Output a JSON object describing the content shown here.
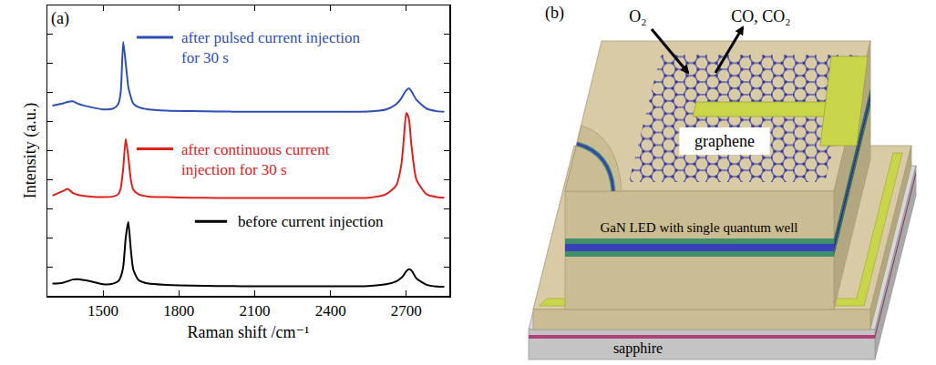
{
  "chart_data": {
    "type": "line",
    "panel_label": "(a)",
    "x_label": "Raman shift /cm⁻¹",
    "y_label": "Intensity (a.u.)",
    "x": [
      1300,
      1340,
      1360,
      1380,
      1400,
      1450,
      1500,
      1540,
      1560,
      1570,
      1580,
      1590,
      1600,
      1610,
      1620,
      1640,
      1680,
      1750,
      1850,
      1950,
      2050,
      2150,
      2250,
      2350,
      2450,
      2550,
      2620,
      2660,
      2680,
      2690,
      2700,
      2710,
      2720,
      2740,
      2780,
      2820,
      2850
    ],
    "series": [
      {
        "name": "after pulsed current injection for 30 s",
        "color": "#2e4fb5",
        "values": [
          6.55,
          6.62,
          6.68,
          6.7,
          6.62,
          6.5,
          6.42,
          6.45,
          6.6,
          7.0,
          8.75,
          8.0,
          7.2,
          6.85,
          6.62,
          6.5,
          6.42,
          6.38,
          6.36,
          6.35,
          6.34,
          6.34,
          6.34,
          6.34,
          6.34,
          6.35,
          6.42,
          6.6,
          6.8,
          6.95,
          7.08,
          7.15,
          7.05,
          6.75,
          6.45,
          6.36,
          6.34
        ]
      },
      {
        "name": "after continuous current injection for 30 s",
        "color": "#e0201b",
        "values": [
          3.45,
          3.6,
          3.68,
          3.55,
          3.48,
          3.42,
          3.4,
          3.42,
          3.5,
          3.7,
          4.4,
          5.4,
          4.8,
          4.0,
          3.65,
          3.5,
          3.42,
          3.4,
          3.38,
          3.37,
          3.37,
          3.37,
          3.37,
          3.37,
          3.37,
          3.38,
          3.5,
          3.8,
          4.5,
          5.4,
          6.3,
          6.1,
          5.2,
          4.0,
          3.5,
          3.4,
          3.38
        ]
      },
      {
        "name": "before current injection",
        "color": "#000000",
        "values": [
          0.42,
          0.45,
          0.5,
          0.56,
          0.57,
          0.5,
          0.4,
          0.42,
          0.5,
          0.65,
          1.0,
          2.0,
          2.55,
          1.6,
          0.9,
          0.55,
          0.42,
          0.38,
          0.35,
          0.34,
          0.33,
          0.33,
          0.33,
          0.33,
          0.33,
          0.34,
          0.4,
          0.5,
          0.62,
          0.72,
          0.85,
          0.92,
          0.88,
          0.6,
          0.38,
          0.32,
          0.31
        ]
      }
    ],
    "xlim": [
      1280,
      2870
    ],
    "xticks": [
      1500,
      1800,
      2100,
      2400,
      2700
    ],
    "ylim": [
      0,
      10
    ],
    "yticks": [
      1,
      2,
      3,
      4,
      5,
      6,
      7,
      8,
      9
    ],
    "tick_labels": "x",
    "grid": false
  },
  "diagram": {
    "panel_label": "(b)",
    "gas_in": "O₂",
    "gas_out": "CO, CO₂",
    "layer_top": "graphene",
    "device": "GaN LED with single quantum well",
    "substrate": "sapphire"
  }
}
